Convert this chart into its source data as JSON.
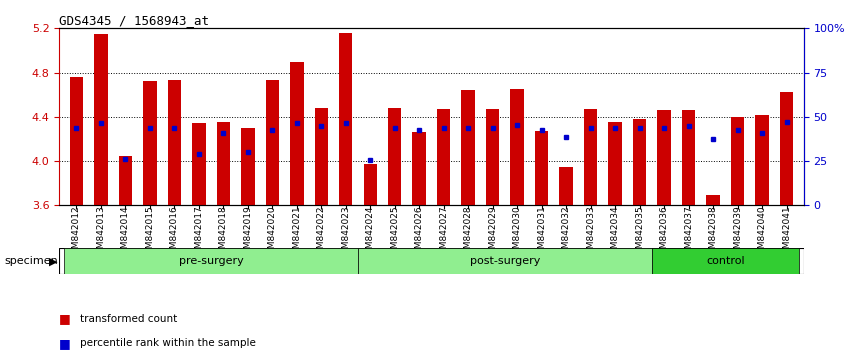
{
  "title": "GDS4345 / 1568943_at",
  "samples": [
    "GSM842012",
    "GSM842013",
    "GSM842014",
    "GSM842015",
    "GSM842016",
    "GSM842017",
    "GSM842018",
    "GSM842019",
    "GSM842020",
    "GSM842021",
    "GSM842022",
    "GSM842023",
    "GSM842024",
    "GSM842025",
    "GSM842026",
    "GSM842027",
    "GSM842028",
    "GSM842029",
    "GSM842030",
    "GSM842031",
    "GSM842032",
    "GSM842033",
    "GSM842034",
    "GSM842035",
    "GSM842036",
    "GSM842037",
    "GSM842038",
    "GSM842039",
    "GSM842040",
    "GSM842041"
  ],
  "bar_values": [
    4.76,
    5.15,
    4.05,
    4.72,
    4.73,
    4.34,
    4.35,
    4.3,
    4.73,
    4.9,
    4.48,
    5.16,
    3.97,
    4.48,
    4.26,
    4.47,
    4.64,
    4.47,
    4.65,
    4.27,
    3.95,
    4.47,
    4.35,
    4.38,
    4.46,
    4.46,
    3.69,
    4.4,
    4.42,
    4.62
  ],
  "percentile_values": [
    4.3,
    4.34,
    4.02,
    4.3,
    4.3,
    4.06,
    4.25,
    4.08,
    4.28,
    4.34,
    4.32,
    4.34,
    4.01,
    4.3,
    4.28,
    4.3,
    4.3,
    4.3,
    4.33,
    4.28,
    4.22,
    4.3,
    4.3,
    4.3,
    4.3,
    4.32,
    4.2,
    4.28,
    4.25,
    4.35
  ],
  "groups": [
    {
      "label": "pre-surgery",
      "start": 0,
      "end": 12,
      "color": "#90EE90"
    },
    {
      "label": "post-surgery",
      "start": 12,
      "end": 24,
      "color": "#90EE90"
    },
    {
      "label": "control",
      "start": 24,
      "end": 30,
      "color": "#32CD32"
    }
  ],
  "ylim": [
    3.6,
    5.2
  ],
  "yticks": [
    3.6,
    4.0,
    4.4,
    4.8,
    5.2
  ],
  "right_ytick_vals": [
    0,
    25,
    50,
    75,
    100
  ],
  "right_ytick_labels": [
    "0",
    "25",
    "50",
    "75",
    "100%"
  ],
  "bar_color": "#CC0000",
  "dot_color": "#0000CC",
  "bar_width": 0.55,
  "grid_color": "black",
  "left_tick_color": "#CC0000",
  "right_tick_color": "#0000CC",
  "facecolor": "#ffffff",
  "specimen_label": "specimen",
  "legend_items": [
    {
      "label": "transformed count",
      "color": "#CC0000"
    },
    {
      "label": "percentile rank within the sample",
      "color": "#0000CC"
    }
  ]
}
